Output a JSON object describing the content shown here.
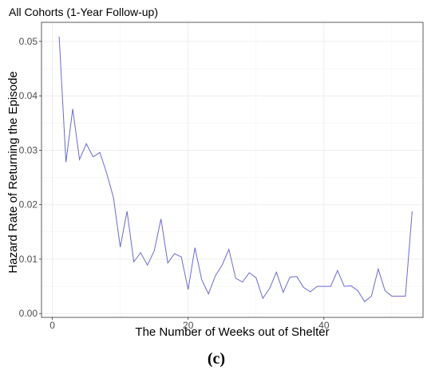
{
  "chart_data": {
    "type": "line",
    "title": "All Cohorts (1-Year Follow-up)",
    "xlabel": "The Number of Weeks out of Shelter",
    "ylabel": "Hazard Rate of Returning the Episode",
    "caption": "(c)",
    "xlim": [
      -1.6,
      54.6
    ],
    "ylim": [
      -0.0007,
      0.0535
    ],
    "x_ticks": [
      0,
      20,
      40
    ],
    "x_tick_labels": [
      "0",
      "20",
      "40"
    ],
    "y_ticks": [
      0.0,
      0.01,
      0.02,
      0.03,
      0.04,
      0.05
    ],
    "y_tick_labels": [
      "0.00",
      "0.01",
      "0.02",
      "0.03",
      "0.04",
      "0.05"
    ],
    "grid": true,
    "line_color": "#6a6ad0",
    "series": [
      {
        "x": [
          1,
          2,
          3,
          4,
          5,
          6,
          7,
          8,
          9,
          10,
          11,
          12,
          13,
          14,
          15,
          16,
          17,
          18,
          19,
          20,
          21,
          22,
          23,
          24,
          25,
          26,
          27,
          28,
          29,
          30,
          31,
          32,
          33,
          34,
          35,
          36,
          37,
          38,
          39,
          40,
          41,
          42,
          43,
          44,
          45,
          46,
          47,
          48,
          49,
          50,
          51,
          52,
          53
        ],
        "y": [
          0.0509,
          0.0278,
          0.0376,
          0.0283,
          0.0312,
          0.0288,
          0.0296,
          0.0258,
          0.0213,
          0.0122,
          0.0188,
          0.0095,
          0.0112,
          0.0089,
          0.0115,
          0.0174,
          0.0093,
          0.011,
          0.0104,
          0.0044,
          0.0121,
          0.0062,
          0.0036,
          0.0069,
          0.0089,
          0.0118,
          0.0065,
          0.0058,
          0.0075,
          0.0066,
          0.0028,
          0.0046,
          0.0076,
          0.0039,
          0.0067,
          0.0068,
          0.0048,
          0.004,
          0.005,
          0.005,
          0.005,
          0.0079,
          0.005,
          0.0051,
          0.0042,
          0.0022,
          0.0032,
          0.0082,
          0.0042,
          0.0032,
          0.0032,
          0.0032,
          0.0188
        ]
      }
    ]
  }
}
